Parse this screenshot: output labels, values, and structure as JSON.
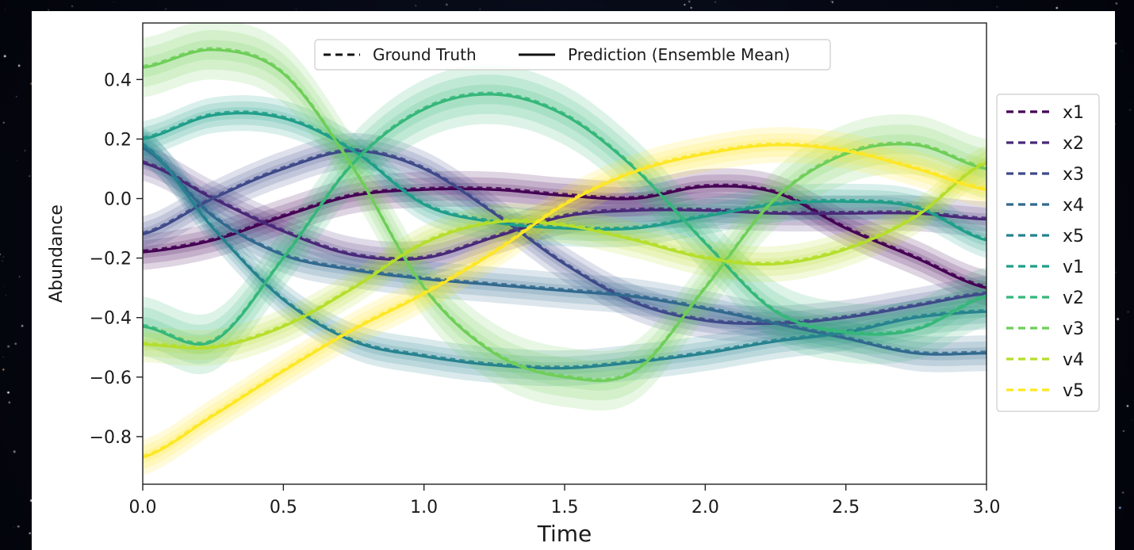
{
  "chart_data": {
    "type": "line",
    "xlabel": "Time",
    "ylabel": "Abundance",
    "xlim": [
      0,
      3
    ],
    "ylim": [
      -0.96,
      0.59
    ],
    "xticks": [
      0,
      0.5,
      1,
      1.5,
      2,
      2.5,
      3
    ],
    "xtick_labels": [
      "0.0",
      "0.5",
      "1.0",
      "1.5",
      "2.0",
      "2.5",
      "3.0"
    ],
    "yticks": [
      -0.8,
      -0.6,
      -0.4,
      -0.2,
      0,
      0.2,
      0.4
    ],
    "ytick_labels": [
      "−0.8",
      "−0.6",
      "−0.4",
      "−0.2",
      "0.0",
      "0.2",
      "0.4"
    ],
    "grid": false,
    "style_legend": {
      "placement": "top-center",
      "entries": [
        {
          "label": "Ground Truth",
          "style": "dashed"
        },
        {
          "label": "Prediction (Ensemble Mean)",
          "style": "solid"
        }
      ]
    },
    "series_legend_placement": "outside-right",
    "x": [
      0,
      0.25,
      0.5,
      0.75,
      1,
      1.25,
      1.5,
      1.75,
      2,
      2.25,
      2.5,
      2.75,
      3
    ],
    "series": [
      {
        "name": "x1",
        "color": "#440154",
        "band": 0.03,
        "values": [
          -0.18,
          -0.14,
          -0.06,
          0.01,
          0.03,
          0.03,
          0.01,
          0.0,
          0.04,
          0.02,
          -0.1,
          -0.2,
          -0.3
        ]
      },
      {
        "name": "x2",
        "color": "#482878",
        "band": 0.03,
        "values": [
          0.12,
          0.0,
          -0.11,
          -0.19,
          -0.2,
          -0.13,
          -0.06,
          -0.04,
          -0.04,
          -0.05,
          -0.05,
          -0.05,
          -0.07
        ]
      },
      {
        "name": "x3",
        "color": "#3e4989",
        "band": 0.03,
        "values": [
          -0.12,
          0.0,
          0.1,
          0.16,
          0.1,
          -0.05,
          -0.22,
          -0.35,
          -0.41,
          -0.42,
          -0.4,
          -0.36,
          -0.32
        ]
      },
      {
        "name": "x4",
        "color": "#31688e",
        "band": 0.03,
        "values": [
          0.17,
          -0.06,
          -0.19,
          -0.24,
          -0.27,
          -0.29,
          -0.31,
          -0.33,
          -0.37,
          -0.42,
          -0.47,
          -0.52,
          -0.52
        ]
      },
      {
        "name": "x5",
        "color": "#26828e",
        "band": 0.03,
        "values": [
          0.18,
          -0.1,
          -0.34,
          -0.48,
          -0.53,
          -0.56,
          -0.57,
          -0.55,
          -0.52,
          -0.48,
          -0.45,
          -0.4,
          -0.38
        ]
      },
      {
        "name": "v1",
        "color": "#1f9e89",
        "band": 0.03,
        "values": [
          0.2,
          0.28,
          0.27,
          0.16,
          -0.02,
          -0.08,
          -0.1,
          -0.1,
          -0.06,
          -0.02,
          -0.01,
          -0.03,
          -0.14
        ]
      },
      {
        "name": "v2",
        "color": "#35b779",
        "band": 0.05,
        "values": [
          -0.43,
          -0.48,
          -0.2,
          0.12,
          0.3,
          0.35,
          0.28,
          0.1,
          -0.15,
          -0.38,
          -0.45,
          -0.44,
          -0.33
        ]
      },
      {
        "name": "v3",
        "color": "#6ece58",
        "band": 0.05,
        "values": [
          0.44,
          0.5,
          0.42,
          0.1,
          -0.3,
          -0.52,
          -0.6,
          -0.58,
          -0.3,
          0.0,
          0.15,
          0.18,
          0.1
        ]
      },
      {
        "name": "v4",
        "color": "#b5de2b",
        "band": 0.03,
        "values": [
          -0.49,
          -0.5,
          -0.43,
          -0.3,
          -0.15,
          -0.08,
          -0.09,
          -0.14,
          -0.2,
          -0.22,
          -0.17,
          -0.06,
          0.12
        ]
      },
      {
        "name": "v5",
        "color": "#fde725",
        "band": 0.03,
        "values": [
          -0.87,
          -0.73,
          -0.58,
          -0.44,
          -0.32,
          -0.18,
          -0.02,
          0.09,
          0.15,
          0.18,
          0.16,
          0.1,
          0.03
        ]
      }
    ]
  }
}
